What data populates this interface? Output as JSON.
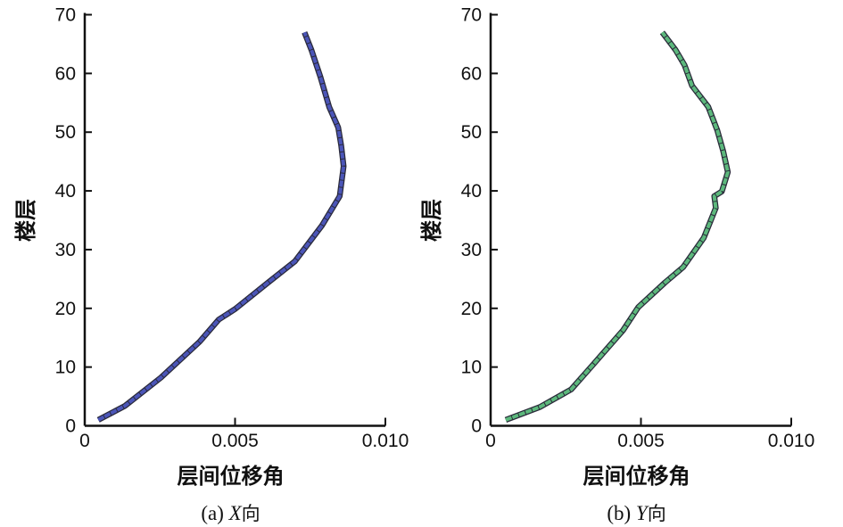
{
  "chart_data": [
    {
      "type": "line",
      "caption_prefix": "(a) ",
      "caption_var": "X",
      "caption_suffix": "向",
      "xlabel": "层间位移角",
      "ylabel": "楼层",
      "xlim": [
        0,
        0.01
      ],
      "ylim": [
        0,
        70
      ],
      "xticks": [
        0,
        0.005,
        0.01
      ],
      "xtick_labels": [
        "0",
        "0.005",
        "0.010"
      ],
      "yticks": [
        0,
        10,
        20,
        30,
        40,
        50,
        60,
        70
      ],
      "ytick_labels": [
        "0",
        "10",
        "20",
        "30",
        "40",
        "50",
        "60",
        "70"
      ],
      "grid": false,
      "color": "#4b55b8",
      "points": [
        [
          0.00045,
          1
        ],
        [
          0.00134,
          3.4
        ],
        [
          0.00253,
          8.2
        ],
        [
          0.00382,
          14.3
        ],
        [
          0.00446,
          18.1
        ],
        [
          0.00501,
          19.9
        ],
        [
          0.0061,
          24.4
        ],
        [
          0.00699,
          28
        ],
        [
          0.00789,
          34.1
        ],
        [
          0.00848,
          39.1
        ],
        [
          0.00861,
          44.2
        ],
        [
          0.00853,
          47.7
        ],
        [
          0.00843,
          50.8
        ],
        [
          0.00813,
          54.3
        ],
        [
          0.00784,
          59.4
        ],
        [
          0.00754,
          64
        ],
        [
          0.00731,
          67
        ]
      ]
    },
    {
      "type": "line",
      "caption_prefix": "(b) ",
      "caption_var": "Y",
      "caption_suffix": "向",
      "xlabel": "层间位移角",
      "ylabel": "楼层",
      "xlim": [
        0,
        0.01
      ],
      "ylim": [
        0,
        70
      ],
      "xticks": [
        0,
        0.005,
        0.01
      ],
      "xtick_labels": [
        "0",
        "0.005",
        "0.010"
      ],
      "yticks": [
        0,
        10,
        20,
        30,
        40,
        50,
        60,
        70
      ],
      "ytick_labels": [
        "0",
        "10",
        "20",
        "30",
        "40",
        "50",
        "60",
        "70"
      ],
      "grid": false,
      "color": "#5cb87c",
      "points": [
        [
          0.0005,
          1
        ],
        [
          0.00164,
          3.2
        ],
        [
          0.00268,
          6.2
        ],
        [
          0.00342,
          10.5
        ],
        [
          0.00441,
          16.3
        ],
        [
          0.00491,
          20.2
        ],
        [
          0.0058,
          24.4
        ],
        [
          0.0064,
          27
        ],
        [
          0.00709,
          32
        ],
        [
          0.00749,
          37.1
        ],
        [
          0.00744,
          39.1
        ],
        [
          0.00769,
          39.9
        ],
        [
          0.00789,
          43.2
        ],
        [
          0.00774,
          46.7
        ],
        [
          0.00754,
          50.3
        ],
        [
          0.00724,
          54.3
        ],
        [
          0.0067,
          57.9
        ],
        [
          0.00645,
          61.4
        ],
        [
          0.00615,
          64
        ],
        [
          0.00571,
          67
        ]
      ]
    }
  ]
}
